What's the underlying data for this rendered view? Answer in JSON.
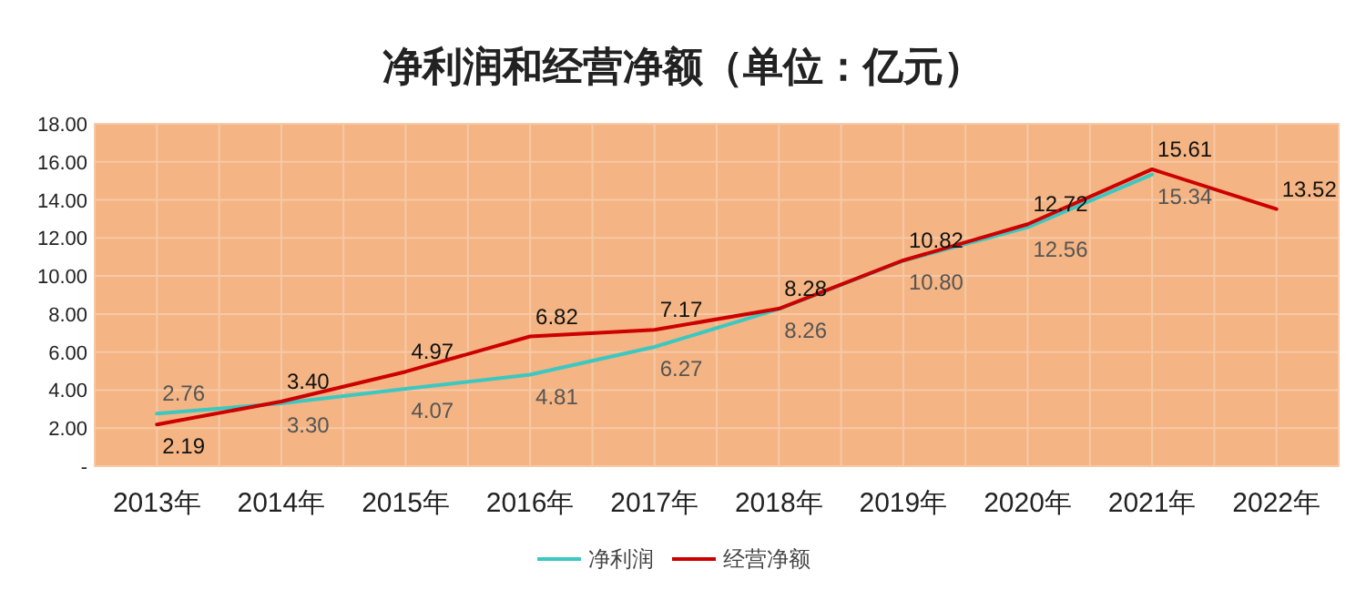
{
  "chart_data": {
    "type": "line",
    "title": "净利润和经营净额（单位：亿元）",
    "categories": [
      "2013年",
      "2014年",
      "2015年",
      "2016年",
      "2017年",
      "2018年",
      "2019年",
      "2020年",
      "2021年",
      "2022年"
    ],
    "series": [
      {
        "name": "净利润",
        "color": "#3cc8c0",
        "values": [
          2.76,
          3.3,
          4.07,
          4.81,
          6.27,
          8.26,
          10.8,
          12.56,
          15.34,
          null
        ],
        "value_labels": [
          "2.76",
          "3.30",
          "4.07",
          "4.81",
          "6.27",
          "8.26",
          "10.80",
          "12.56",
          "15.34",
          null
        ]
      },
      {
        "name": "经营净额",
        "color": "#cc0000",
        "values": [
          2.19,
          3.4,
          4.97,
          6.82,
          7.17,
          8.28,
          10.82,
          12.72,
          15.61,
          13.52
        ],
        "value_labels": [
          "2.19",
          "3.40",
          "4.97",
          "6.82",
          "7.17",
          "8.28",
          "10.82",
          "12.72",
          "15.61",
          "13.52"
        ]
      }
    ],
    "ylim": [
      0,
      18
    ],
    "yticks": [
      {
        "value": 0,
        "label": "-"
      },
      {
        "value": 2,
        "label": "2.00"
      },
      {
        "value": 4,
        "label": "4.00"
      },
      {
        "value": 6,
        "label": "6.00"
      },
      {
        "value": 8,
        "label": "8.00"
      },
      {
        "value": 10,
        "label": "10.00"
      },
      {
        "value": 12,
        "label": "12.00"
      },
      {
        "value": 14,
        "label": "14.00"
      },
      {
        "value": 16,
        "label": "16.00"
      },
      {
        "value": 18,
        "label": "18.00"
      }
    ],
    "grid": true,
    "legend": "bottom"
  }
}
